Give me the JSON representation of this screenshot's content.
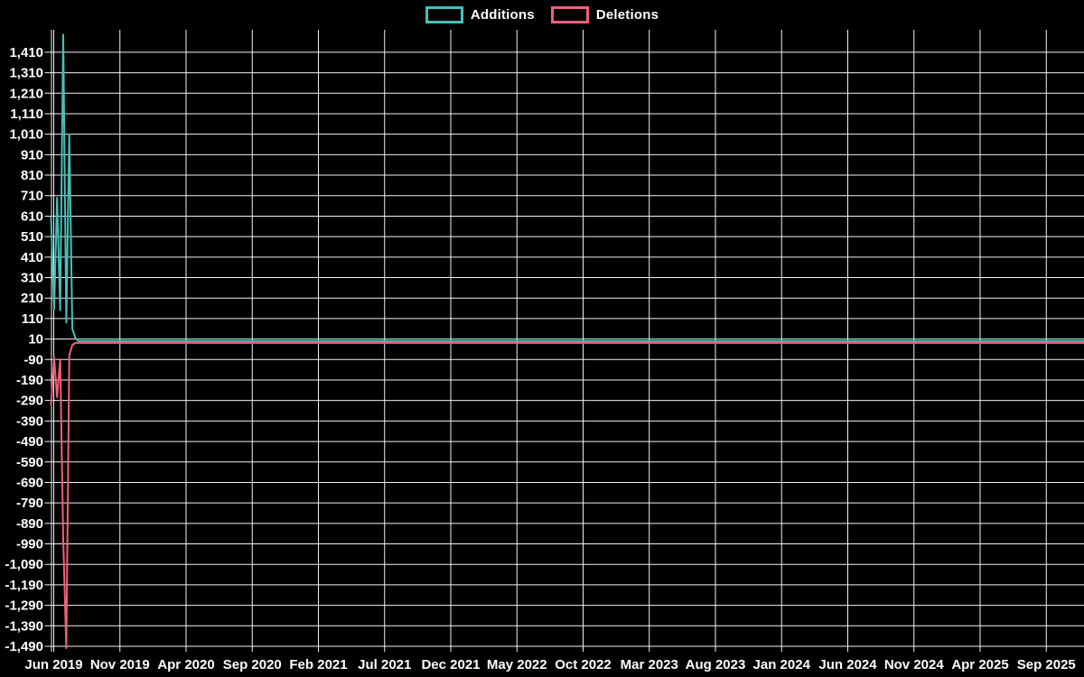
{
  "page": {
    "background_color": "#000000",
    "text_color": "#ffffff",
    "grid_color": "#f2f2f2"
  },
  "chart_data": {
    "type": "line",
    "title": "",
    "xlabel": "",
    "ylabel": "",
    "legend_position": "top-center",
    "grid": {
      "visible": true,
      "color": "#f2f2f2"
    },
    "x_axis": {
      "unit": "weeks",
      "start": "Jun 2019",
      "end": "Sep 2025",
      "tick_labels": [
        "Jun 2019",
        "Nov 2019",
        "Apr 2020",
        "Sep 2020",
        "Feb 2021",
        "Jul 2021",
        "Dec 2021",
        "May 2022",
        "Oct 2022",
        "Mar 2023",
        "Aug 2023",
        "Jan 2024",
        "Jun 2024",
        "Nov 2024",
        "Apr 2025",
        "Sep 2025"
      ]
    },
    "y_axis": {
      "min": -1490,
      "max": 1496,
      "tick_step": 100,
      "tick_labels": [
        "1,410",
        "1,310",
        "1,210",
        "1,110",
        "1,010",
        "910",
        "810",
        "710",
        "610",
        "510",
        "410",
        "310",
        "210",
        "110",
        "10",
        "-90",
        "-190",
        "-290",
        "-390",
        "-490",
        "-590",
        "-690",
        "-790",
        "-890",
        "-990",
        "-1,090",
        "-1,190",
        "-1,290",
        "-1,390",
        "-1,490"
      ]
    },
    "series": [
      {
        "name": "Additions",
        "color": "#45c0b8",
        "cadence": "weekly",
        "values_head": [
          610,
          155,
          700,
          150,
          1496,
          90,
          1010,
          60,
          15
        ],
        "values_tail": 0,
        "peak": 1496
      },
      {
        "name": "Deletions",
        "color": "#f25f79",
        "cadence": "weekly",
        "values_head": [
          -305,
          -70,
          -265,
          -80,
          -960,
          -1490,
          -60,
          -10
        ],
        "values_tail": 0,
        "trough": -1490
      }
    ]
  }
}
